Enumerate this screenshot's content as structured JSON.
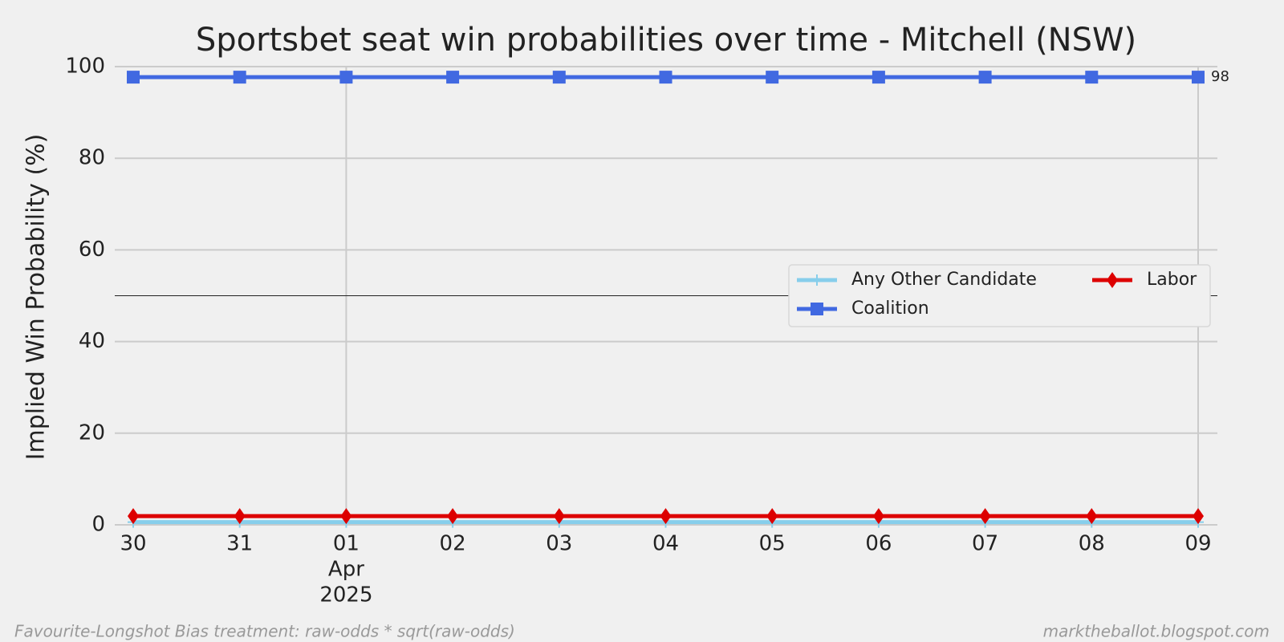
{
  "chart_data": {
    "type": "line",
    "title": "Sportsbet seat win probabilities over time - Mitchell (NSW)",
    "y_label": "Implied Win Probability (%)",
    "categories": [
      "30",
      "31",
      "01",
      "02",
      "03",
      "04",
      "05",
      "06",
      "07",
      "08",
      "09"
    ],
    "x_month_label": "Apr",
    "x_year_label": "2025",
    "x_major_ticks": [
      "01",
      "09"
    ],
    "ylim": [
      0,
      100
    ],
    "yticks": [
      0,
      20,
      40,
      60,
      80,
      100
    ],
    "grid": true,
    "hline": 50,
    "legend_position": "center-right",
    "series": [
      {
        "name": "Any Other Candidate",
        "color": "#87ceeb",
        "marker": "plus",
        "values": [
          0.6,
          0.6,
          0.6,
          0.6,
          0.6,
          0.6,
          0.6,
          0.6,
          0.6,
          0.6,
          0.6
        ]
      },
      {
        "name": "Coalition",
        "color": "#4169e1",
        "marker": "square",
        "values": [
          97.7,
          97.7,
          97.7,
          97.7,
          97.7,
          97.7,
          97.7,
          97.7,
          97.7,
          97.7,
          97.7
        ],
        "value_labels": [
          null,
          null,
          null,
          null,
          null,
          null,
          null,
          null,
          null,
          null,
          "98"
        ]
      },
      {
        "name": "Labor",
        "color": "#dd0000",
        "marker": "diamond",
        "values": [
          1.9,
          1.9,
          1.9,
          1.9,
          1.9,
          1.9,
          1.9,
          1.9,
          1.9,
          1.9,
          1.9
        ]
      }
    ],
    "footer_left": "Favourite-Longshot Bias treatment: raw-odds * sqrt(raw-odds)",
    "footer_right": "marktheballot.blogspot.com"
  }
}
